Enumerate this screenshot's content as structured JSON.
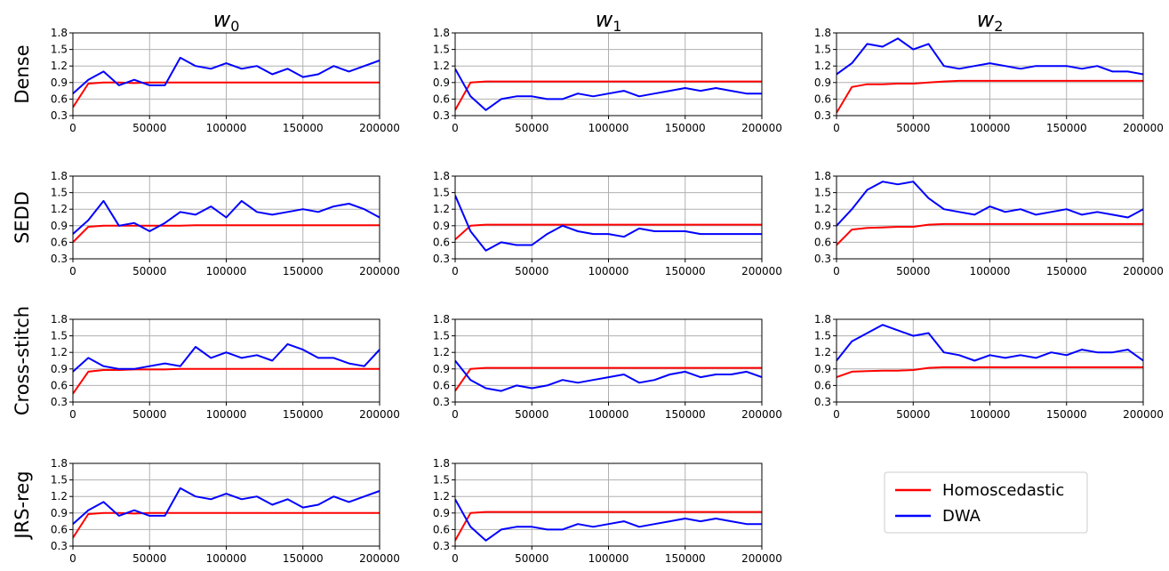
{
  "chart_data": {
    "type": "line",
    "column_titles": [
      {
        "base": "w",
        "sub": "0"
      },
      {
        "base": "w",
        "sub": "1"
      },
      {
        "base": "w",
        "sub": "2"
      }
    ],
    "row_labels": [
      "Dense",
      "SEDD",
      "Cross-stitch",
      "JRS-reg"
    ],
    "xlim": [
      0,
      200000
    ],
    "ylim": [
      0.3,
      1.8
    ],
    "xticks": [
      "0",
      "50000",
      "100000",
      "150000",
      "200000"
    ],
    "yticks": [
      "0.3",
      "0.6",
      "0.9",
      "1.2",
      "1.5",
      "1.8"
    ],
    "grid": true,
    "legend": {
      "placement": "bottom-right",
      "entries": [
        "Homoscedastic",
        "DWA"
      ]
    },
    "colors": {
      "homoscedastic": "#ff0000",
      "dwa": "#0000ff",
      "grid": "#b0b0b0"
    },
    "x": [
      0,
      10000,
      20000,
      30000,
      40000,
      50000,
      60000,
      70000,
      80000,
      90000,
      100000,
      110000,
      120000,
      130000,
      140000,
      150000,
      160000,
      170000,
      180000,
      190000,
      200000
    ],
    "panels": [
      {
        "row": 0,
        "col": 0,
        "series": [
          {
            "name": "Homoscedastic",
            "values": [
              0.45,
              0.88,
              0.9,
              0.9,
              0.89,
              0.9,
              0.9,
              0.9,
              0.9,
              0.9,
              0.9,
              0.9,
              0.9,
              0.9,
              0.9,
              0.9,
              0.9,
              0.9,
              0.9,
              0.9,
              0.9
            ]
          },
          {
            "name": "DWA",
            "values": [
              0.7,
              0.95,
              1.1,
              0.85,
              0.95,
              0.85,
              0.85,
              1.35,
              1.2,
              1.15,
              1.25,
              1.15,
              1.2,
              1.05,
              1.15,
              1.0,
              1.05,
              1.2,
              1.1,
              1.2,
              1.3
            ]
          }
        ]
      },
      {
        "row": 0,
        "col": 1,
        "series": [
          {
            "name": "Homoscedastic",
            "values": [
              0.4,
              0.9,
              0.92,
              0.92,
              0.92,
              0.92,
              0.92,
              0.92,
              0.92,
              0.92,
              0.92,
              0.92,
              0.92,
              0.92,
              0.92,
              0.92,
              0.92,
              0.92,
              0.92,
              0.92,
              0.92
            ]
          },
          {
            "name": "DWA",
            "values": [
              1.15,
              0.65,
              0.4,
              0.6,
              0.65,
              0.65,
              0.6,
              0.6,
              0.7,
              0.65,
              0.7,
              0.75,
              0.65,
              0.7,
              0.75,
              0.8,
              0.75,
              0.8,
              0.75,
              0.7,
              0.7
            ]
          }
        ]
      },
      {
        "row": 0,
        "col": 2,
        "series": [
          {
            "name": "Homoscedastic",
            "values": [
              0.35,
              0.82,
              0.87,
              0.87,
              0.88,
              0.88,
              0.9,
              0.92,
              0.93,
              0.93,
              0.93,
              0.93,
              0.93,
              0.93,
              0.93,
              0.93,
              0.93,
              0.93,
              0.93,
              0.93,
              0.93
            ]
          },
          {
            "name": "DWA",
            "values": [
              1.05,
              1.25,
              1.6,
              1.55,
              1.7,
              1.5,
              1.6,
              1.2,
              1.15,
              1.2,
              1.25,
              1.2,
              1.15,
              1.2,
              1.2,
              1.2,
              1.15,
              1.2,
              1.1,
              1.1,
              1.05
            ]
          }
        ]
      },
      {
        "row": 1,
        "col": 0,
        "series": [
          {
            "name": "Homoscedastic",
            "values": [
              0.6,
              0.88,
              0.9,
              0.9,
              0.9,
              0.9,
              0.9,
              0.9,
              0.91,
              0.91,
              0.91,
              0.91,
              0.91,
              0.91,
              0.91,
              0.91,
              0.91,
              0.91,
              0.91,
              0.91,
              0.91
            ]
          },
          {
            "name": "DWA",
            "values": [
              0.75,
              1.0,
              1.35,
              0.9,
              0.95,
              0.8,
              0.95,
              1.15,
              1.1,
              1.25,
              1.05,
              1.35,
              1.15,
              1.1,
              1.15,
              1.2,
              1.15,
              1.25,
              1.3,
              1.2,
              1.05
            ]
          }
        ]
      },
      {
        "row": 1,
        "col": 1,
        "series": [
          {
            "name": "Homoscedastic",
            "values": [
              0.65,
              0.9,
              0.92,
              0.92,
              0.92,
              0.92,
              0.92,
              0.92,
              0.92,
              0.92,
              0.92,
              0.92,
              0.92,
              0.92,
              0.92,
              0.92,
              0.92,
              0.92,
              0.92,
              0.92,
              0.92
            ]
          },
          {
            "name": "DWA",
            "values": [
              1.45,
              0.8,
              0.45,
              0.6,
              0.55,
              0.55,
              0.75,
              0.9,
              0.8,
              0.75,
              0.75,
              0.7,
              0.85,
              0.8,
              0.8,
              0.8,
              0.75,
              0.75,
              0.75,
              0.75,
              0.75
            ]
          }
        ]
      },
      {
        "row": 1,
        "col": 2,
        "series": [
          {
            "name": "Homoscedastic",
            "values": [
              0.55,
              0.83,
              0.86,
              0.87,
              0.88,
              0.88,
              0.92,
              0.93,
              0.93,
              0.93,
              0.93,
              0.93,
              0.93,
              0.93,
              0.93,
              0.93,
              0.93,
              0.93,
              0.93,
              0.93,
              0.93
            ]
          },
          {
            "name": "DWA",
            "values": [
              0.9,
              1.2,
              1.55,
              1.7,
              1.65,
              1.7,
              1.4,
              1.2,
              1.15,
              1.1,
              1.25,
              1.15,
              1.2,
              1.1,
              1.15,
              1.2,
              1.1,
              1.15,
              1.1,
              1.05,
              1.2
            ]
          }
        ]
      },
      {
        "row": 2,
        "col": 0,
        "series": [
          {
            "name": "Homoscedastic",
            "values": [
              0.45,
              0.85,
              0.88,
              0.88,
              0.89,
              0.89,
              0.89,
              0.9,
              0.9,
              0.9,
              0.9,
              0.9,
              0.9,
              0.9,
              0.9,
              0.9,
              0.9,
              0.9,
              0.9,
              0.9,
              0.9
            ]
          },
          {
            "name": "DWA",
            "values": [
              0.85,
              1.1,
              0.95,
              0.9,
              0.9,
              0.95,
              1.0,
              0.95,
              1.3,
              1.1,
              1.2,
              1.1,
              1.15,
              1.05,
              1.35,
              1.25,
              1.1,
              1.1,
              1.0,
              0.95,
              1.25
            ]
          }
        ]
      },
      {
        "row": 2,
        "col": 1,
        "series": [
          {
            "name": "Homoscedastic",
            "values": [
              0.5,
              0.9,
              0.92,
              0.92,
              0.92,
              0.92,
              0.92,
              0.92,
              0.92,
              0.92,
              0.92,
              0.92,
              0.92,
              0.92,
              0.92,
              0.92,
              0.92,
              0.92,
              0.92,
              0.92,
              0.92
            ]
          },
          {
            "name": "DWA",
            "values": [
              1.05,
              0.7,
              0.55,
              0.5,
              0.6,
              0.55,
              0.6,
              0.7,
              0.65,
              0.7,
              0.75,
              0.8,
              0.65,
              0.7,
              0.8,
              0.85,
              0.75,
              0.8,
              0.8,
              0.85,
              0.75
            ]
          }
        ]
      },
      {
        "row": 2,
        "col": 2,
        "series": [
          {
            "name": "Homoscedastic",
            "values": [
              0.75,
              0.85,
              0.86,
              0.87,
              0.87,
              0.88,
              0.92,
              0.93,
              0.93,
              0.93,
              0.93,
              0.93,
              0.93,
              0.93,
              0.93,
              0.93,
              0.93,
              0.93,
              0.93,
              0.93,
              0.93
            ]
          },
          {
            "name": "DWA",
            "values": [
              1.05,
              1.4,
              1.55,
              1.7,
              1.6,
              1.5,
              1.55,
              1.2,
              1.15,
              1.05,
              1.15,
              1.1,
              1.15,
              1.1,
              1.2,
              1.15,
              1.25,
              1.2,
              1.2,
              1.25,
              1.05
            ]
          }
        ]
      },
      {
        "row": 3,
        "col": 0,
        "series": [
          {
            "name": "Homoscedastic",
            "values": [
              0.45,
              0.88,
              0.9,
              0.9,
              0.89,
              0.9,
              0.9,
              0.9,
              0.9,
              0.9,
              0.9,
              0.9,
              0.9,
              0.9,
              0.9,
              0.9,
              0.9,
              0.9,
              0.9,
              0.9,
              0.9
            ]
          },
          {
            "name": "DWA",
            "values": [
              0.7,
              0.95,
              1.1,
              0.85,
              0.95,
              0.85,
              0.85,
              1.35,
              1.2,
              1.15,
              1.25,
              1.15,
              1.2,
              1.05,
              1.15,
              1.0,
              1.05,
              1.2,
              1.1,
              1.2,
              1.3
            ]
          }
        ]
      },
      {
        "row": 3,
        "col": 1,
        "series": [
          {
            "name": "Homoscedastic",
            "values": [
              0.4,
              0.9,
              0.92,
              0.92,
              0.92,
              0.92,
              0.92,
              0.92,
              0.92,
              0.92,
              0.92,
              0.92,
              0.92,
              0.92,
              0.92,
              0.92,
              0.92,
              0.92,
              0.92,
              0.92,
              0.92
            ]
          },
          {
            "name": "DWA",
            "values": [
              1.15,
              0.65,
              0.4,
              0.6,
              0.65,
              0.65,
              0.6,
              0.6,
              0.7,
              0.65,
              0.7,
              0.75,
              0.65,
              0.7,
              0.75,
              0.8,
              0.75,
              0.8,
              0.75,
              0.7,
              0.7
            ]
          }
        ]
      }
    ]
  }
}
